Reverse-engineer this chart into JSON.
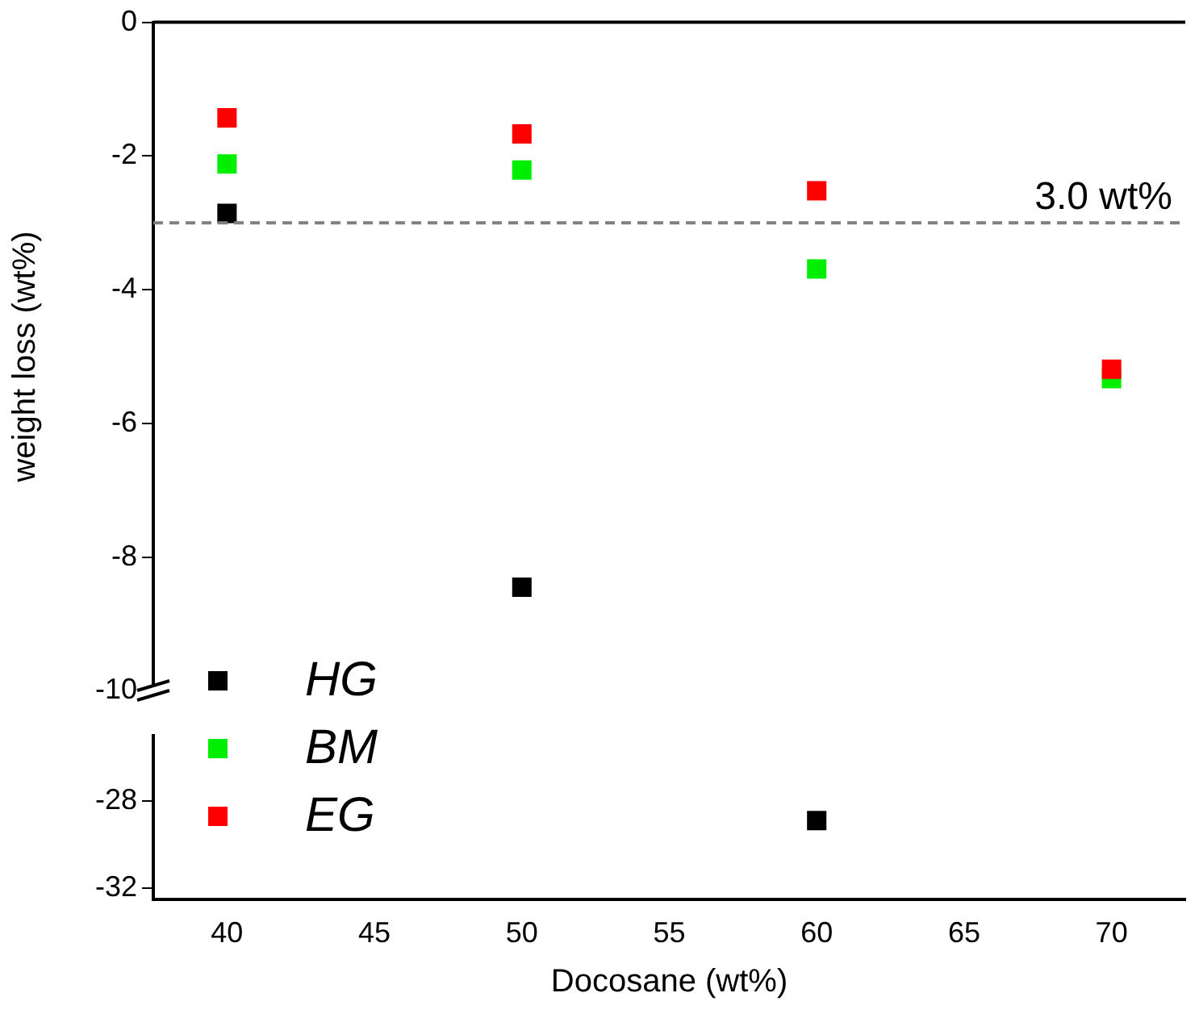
{
  "chart_data": [
    {
      "type": "scatter",
      "ylabel": "weight loss (wt%)",
      "x": [
        40,
        50,
        60,
        70
      ],
      "xlim": [
        37.5,
        72.5
      ],
      "ylim": [
        -10,
        0
      ],
      "yticks": [
        0,
        -2,
        -4,
        -6,
        -8,
        -10
      ],
      "tick_labels": "y",
      "marker": "square",
      "legend": "bottom left",
      "series": [
        {
          "name": "HG",
          "color": "#000000",
          "values": [
            -2.86,
            -8.45,
            null,
            null
          ]
        },
        {
          "name": "BM",
          "color": "#00ee00",
          "values": [
            -2.12,
            -2.21,
            -3.69,
            -5.33
          ]
        },
        {
          "name": "EG",
          "color": "#ff0000",
          "values": [
            -1.43,
            -1.67,
            -2.52,
            -5.19
          ]
        }
      ],
      "ref_lines": [
        {
          "axis": "y",
          "value": -3,
          "label": "3.0 wt%",
          "color": "#808080",
          "line_style": "dashed"
        }
      ]
    },
    {
      "type": "scatter",
      "xlabel": "Docosane (wt%)",
      "xlim": [
        37.5,
        72.5
      ],
      "xticks": [
        40,
        45,
        50,
        55,
        60,
        65,
        70
      ],
      "ylim": [
        -32.5,
        -25
      ],
      "yticks": [
        -28,
        -32
      ],
      "marker": "square",
      "series": [
        {
          "color": "#000000",
          "x": [
            60
          ],
          "values": [
            -28.9
          ]
        }
      ]
    }
  ]
}
